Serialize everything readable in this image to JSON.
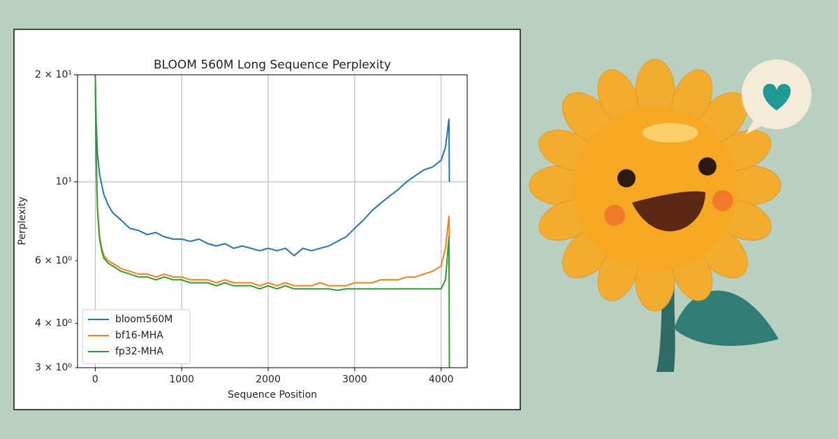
{
  "chart_data": {
    "type": "line",
    "title": "BLOOM 560M Long Sequence Perplexity",
    "xlabel": "Sequence Position",
    "ylabel": "Perplexity",
    "log_y": true,
    "grid": true,
    "legend": "lower left",
    "xlim": [
      -205,
      4301
    ],
    "ylim": [
      3,
      20
    ],
    "xticks": [
      0,
      1000,
      2000,
      3000,
      4000
    ],
    "yticks": [
      {
        "value": 10,
        "label": "10¹"
      },
      {
        "value": 20,
        "label": "2 × 10¹"
      }
    ],
    "yminorticks": [
      {
        "value": 3,
        "label": "3 × 10⁰"
      },
      {
        "value": 4,
        "label": "4 × 10⁰"
      },
      {
        "value": 6,
        "label": "6 × 10⁰"
      }
    ],
    "x": [
      0,
      10,
      25,
      50,
      75,
      100,
      150,
      200,
      300,
      400,
      500,
      600,
      700,
      800,
      900,
      1000,
      1100,
      1200,
      1300,
      1400,
      1500,
      1600,
      1700,
      1800,
      1900,
      2000,
      2100,
      2200,
      2300,
      2400,
      2500,
      2600,
      2700,
      2800,
      2900,
      3000,
      3100,
      3200,
      3300,
      3400,
      3500,
      3600,
      3700,
      3800,
      3900,
      4000,
      4050,
      4090,
      4095
    ],
    "series": [
      {
        "name": "bloom560M",
        "color": "#1f77b4",
        "values": [
          20,
          15,
          12,
          10.5,
          9.8,
          9.2,
          8.6,
          8.2,
          7.8,
          7.4,
          7.3,
          7.1,
          7.2,
          7.0,
          6.9,
          6.9,
          6.8,
          6.9,
          6.7,
          6.6,
          6.7,
          6.5,
          6.6,
          6.5,
          6.4,
          6.5,
          6.4,
          6.5,
          6.2,
          6.5,
          6.4,
          6.5,
          6.6,
          6.8,
          7.0,
          7.4,
          7.8,
          8.3,
          8.7,
          9.1,
          9.5,
          10.0,
          10.4,
          10.8,
          11.0,
          11.5,
          12.5,
          15,
          10
        ]
      },
      {
        "name": "bf16-MHA",
        "color": "#ff7f0e",
        "values": [
          20,
          12,
          8.5,
          7.0,
          6.5,
          6.2,
          6.0,
          5.9,
          5.7,
          5.6,
          5.5,
          5.5,
          5.4,
          5.5,
          5.4,
          5.4,
          5.3,
          5.3,
          5.3,
          5.2,
          5.3,
          5.2,
          5.2,
          5.2,
          5.1,
          5.2,
          5.1,
          5.2,
          5.1,
          5.1,
          5.1,
          5.2,
          5.1,
          5.1,
          5.1,
          5.2,
          5.2,
          5.2,
          5.3,
          5.3,
          5.3,
          5.4,
          5.4,
          5.5,
          5.6,
          5.8,
          6.5,
          8,
          7
        ]
      },
      {
        "name": "fp32-MHA",
        "color": "#2ca02c",
        "values": [
          20,
          12,
          8.4,
          6.9,
          6.4,
          6.1,
          5.9,
          5.8,
          5.6,
          5.5,
          5.4,
          5.4,
          5.3,
          5.4,
          5.3,
          5.3,
          5.2,
          5.2,
          5.2,
          5.1,
          5.2,
          5.1,
          5.1,
          5.1,
          5.0,
          5.1,
          5.0,
          5.1,
          5.0,
          5.0,
          5.0,
          5.0,
          5.0,
          4.95,
          5.0,
          5.0,
          5.0,
          5.0,
          5.0,
          5.0,
          5.0,
          5.0,
          5.0,
          5.0,
          5.0,
          5.0,
          5.3,
          7,
          3
        ]
      }
    ]
  }
}
